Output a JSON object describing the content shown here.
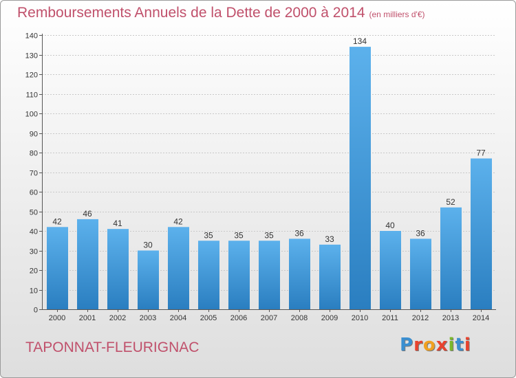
{
  "header": {
    "title": "Remboursements Annuels de la Dette de 2000 à 2014",
    "unit": "(en milliers d'€)"
  },
  "footer": {
    "commune": "TAPONNAT-FLEURIGNAC",
    "logo_text": "Proxiti",
    "logo_colors": [
      "#3a8fd1",
      "#e8432e",
      "#f0a020",
      "#e8432e",
      "#7ab82b",
      "#3a8fd1",
      "#e8432e"
    ]
  },
  "colors": {
    "bar": "#4aa3e2",
    "bar_dark": "#2a7ec0",
    "text": "#c0506b"
  },
  "chart_data": {
    "type": "bar",
    "categories": [
      "2000",
      "2001",
      "2002",
      "2003",
      "2004",
      "2005",
      "2006",
      "2007",
      "2008",
      "2009",
      "2010",
      "2011",
      "2012",
      "2013",
      "2014"
    ],
    "values": [
      42,
      46,
      41,
      30,
      42,
      35,
      35,
      35,
      36,
      33,
      134,
      40,
      36,
      52,
      77
    ],
    "ylim": [
      0,
      140
    ],
    "yticks": [
      0,
      10,
      20,
      30,
      40,
      50,
      60,
      70,
      80,
      90,
      100,
      110,
      120,
      130,
      140
    ],
    "grid": true,
    "data_labels": true
  }
}
